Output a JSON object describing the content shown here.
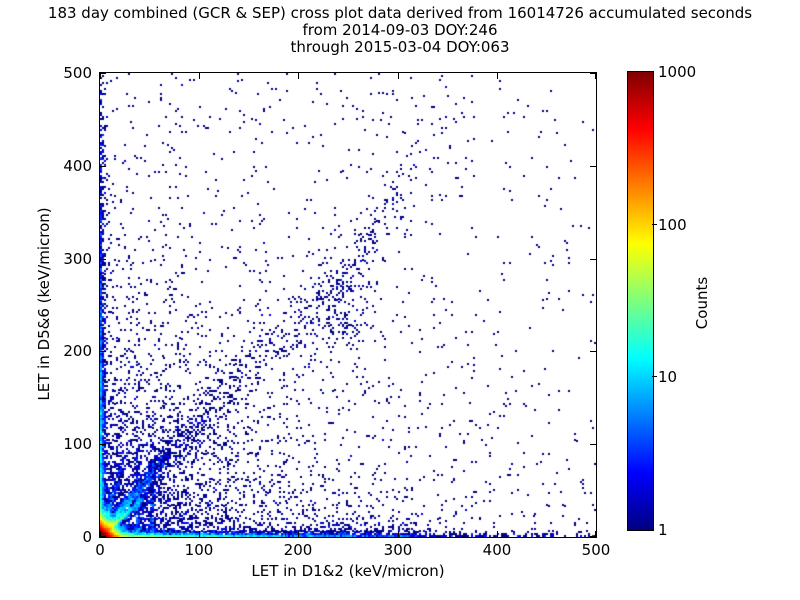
{
  "title": {
    "line1": "183 day combined (GCR & SEP) cross plot data derived from 16014726 accumulated seconds",
    "line2": "from 2014-09-03 DOY:246",
    "line3": "through 2015-03-04 DOY:063"
  },
  "chart_data": {
    "type": "heatmap",
    "description": "2-D histogram cross plot of coincident LET in detectors D1&2 vs D5&6. Hot spot (~1000 counts, red/orange/yellow) at the origin, bright cyan-green correlation streak near y=0.95x out to ~(45,43), denser blue bands along slope~1.3 and slope~3.4, dense count bands hugging both axes, faint vertical streaks near x=38 and x=52, diffuse diagonal scatter with a loose cluster near (235,232) continuing toward (350,470), sparse single-count navy points elsewhere. Counts are log-coloured with a jet colormap from 1 to 1000.",
    "xlabel": "LET in D1&2 (keV/micron)",
    "ylabel": "LET in D5&6 (keV/micron)",
    "xlim": [
      0,
      500
    ],
    "ylim": [
      0,
      500
    ],
    "xticks": [
      0,
      100,
      200,
      300,
      400,
      500
    ],
    "yticks": [
      0,
      100,
      200,
      300,
      400,
      500
    ],
    "grid": false,
    "background_color": "#ffffff",
    "point_base_color": "#000080",
    "colorbar": {
      "label": "Counts",
      "scale": "log",
      "min": 1,
      "max": 1000,
      "ticks": [
        1,
        10,
        100,
        1000
      ],
      "colormap": "jet",
      "gradient_stops": [
        [
          "#800000",
          0
        ],
        [
          "#ff0000",
          12.5
        ],
        [
          "#ffff00",
          37.5
        ],
        [
          "#7dff7d",
          50
        ],
        [
          "#00ffff",
          62.5
        ],
        [
          "#0000ff",
          87.5
        ],
        [
          "#000080",
          100
        ]
      ]
    },
    "seed": 1337,
    "bin_size": 2,
    "features": [
      {
        "name": "origin-hotspot",
        "kind": "xy",
        "n": 22000,
        "x": {
          "dist": "exp",
          "scale": 5,
          "max": 120
        },
        "y": {
          "dist": "exp",
          "scale": 5,
          "max": 120
        }
      },
      {
        "name": "bottom-band",
        "kind": "xy",
        "n": 3500,
        "x": {
          "dist": "exp",
          "scale": 110,
          "max": 500
        },
        "y": {
          "dist": "exp",
          "scale": 2.0,
          "max": 40
        }
      },
      {
        "name": "left-band",
        "kind": "xy",
        "n": 2200,
        "x": {
          "dist": "exp",
          "scale": 1.8,
          "max": 30
        },
        "y": {
          "dist": "exp",
          "scale": 140,
          "max": 500
        }
      },
      {
        "name": "proton-streak",
        "kind": "line",
        "n": 1700,
        "x": {
          "dist": "exp",
          "scale": 13,
          "max": 48
        },
        "slope": 0.95,
        "y0": 0,
        "sigma": 1.3,
        "grow": 0.02
      },
      {
        "name": "mid-band",
        "kind": "line",
        "n": 1400,
        "x": {
          "dist": "exp",
          "scale": 24,
          "max": 72
        },
        "slope": 1.3,
        "y0": 0,
        "sigma": 3.5,
        "grow": 0.04
      },
      {
        "name": "steep-band",
        "kind": "line",
        "n": 500,
        "x": {
          "dist": "exp",
          "scale": 9,
          "max": 30
        },
        "slope": 3.4,
        "y0": 0,
        "sigma": 6,
        "grow": 0.05
      },
      {
        "name": "vertical-streak-38",
        "kind": "vline",
        "n": 220,
        "x0": 38,
        "sigma": 1.4,
        "y": {
          "dist": "exp",
          "scale": 48,
          "max": 135
        }
      },
      {
        "name": "vertical-streak-52",
        "kind": "vline",
        "n": 200,
        "x0": 52,
        "sigma": 1.5,
        "y": {
          "dist": "exp",
          "scale": 48,
          "max": 135
        }
      },
      {
        "name": "diffuse-diagonal",
        "kind": "line",
        "n": 1000,
        "x": {
          "dist": "exp",
          "scale": 120,
          "max": 380
        },
        "slope": 1.2,
        "y0": 0,
        "sigma": 10,
        "grow": 0.1
      },
      {
        "name": "mid-cluster",
        "kind": "xy",
        "n": 130,
        "x": {
          "dist": "gauss",
          "mean": 238,
          "sigma": 22
        },
        "y": {
          "dist": "gauss",
          "mean": 232,
          "sigma": 20
        }
      },
      {
        "name": "upper-diagonal",
        "kind": "line",
        "n": 140,
        "x": {
          "dist": "exp",
          "scale": 50,
          "max": 120,
          "min": 230
        },
        "slope": 1.9,
        "y0": -192,
        "sigma": 16,
        "grow": 0
      },
      {
        "name": "bottom-cluster",
        "kind": "xy",
        "n": 170,
        "x": {
          "dist": "gauss",
          "mean": 238,
          "sigma": 24
        },
        "y": {
          "dist": "exp",
          "scale": 8,
          "max": 45
        }
      },
      {
        "name": "bottom-cluster-2",
        "kind": "xy",
        "n": 60,
        "x": {
          "dist": "gauss",
          "mean": 300,
          "sigma": 14
        },
        "y": {
          "dist": "exp",
          "scale": 7,
          "max": 35
        }
      },
      {
        "name": "lower-left-diffuse",
        "kind": "xy",
        "n": 2500,
        "x": {
          "dist": "exp",
          "scale": 80,
          "max": 500
        },
        "y": {
          "dist": "exp",
          "scale": 80,
          "max": 500
        }
      },
      {
        "name": "bg-uniform",
        "kind": "xy",
        "n": 420,
        "x": {
          "dist": "uniform",
          "min": 0,
          "max": 500
        },
        "y": {
          "dist": "uniform",
          "min": 0,
          "max": 500
        }
      },
      {
        "name": "bg-left",
        "kind": "xy",
        "n": 380,
        "x": {
          "dist": "exp",
          "scale": 170,
          "max": 500
        },
        "y": {
          "dist": "uniform",
          "min": 0,
          "max": 500
        }
      },
      {
        "name": "bg-bottom",
        "kind": "xy",
        "n": 300,
        "x": {
          "dist": "uniform",
          "min": 0,
          "max": 500
        },
        "y": {
          "dist": "exp",
          "scale": 150,
          "max": 500
        }
      }
    ]
  }
}
